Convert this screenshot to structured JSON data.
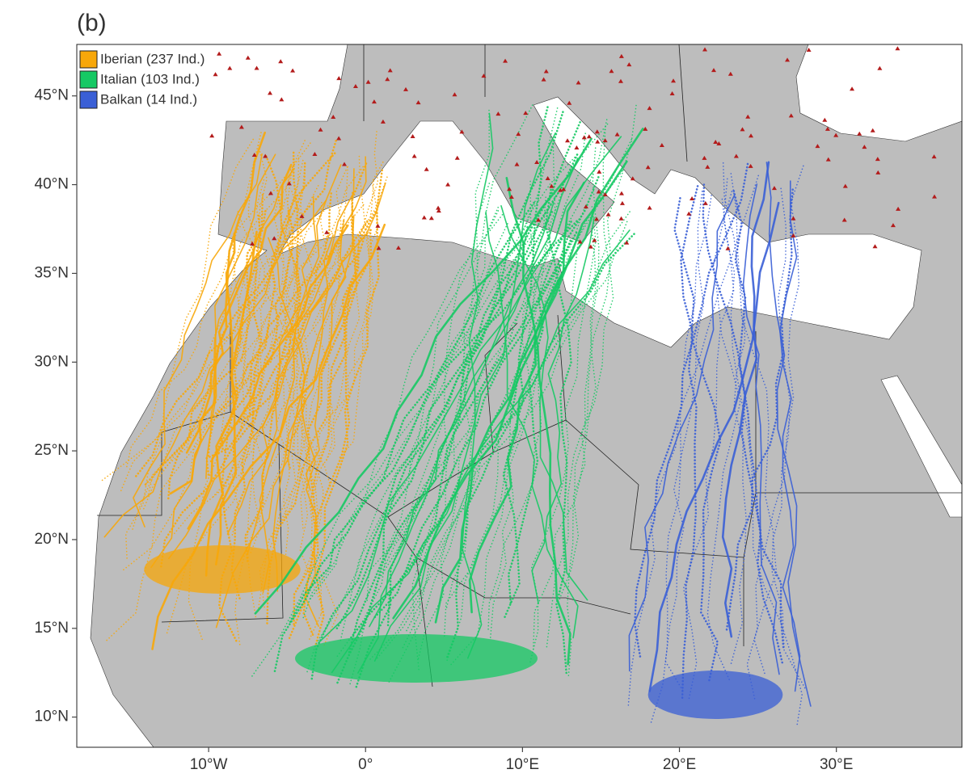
{
  "panel_label": "(b)",
  "legend": {
    "items": [
      {
        "label": "Iberian (237 Ind.)",
        "color": "#f7a70a"
      },
      {
        "label": "Italian (103 Ind.)",
        "color": "#16c964"
      },
      {
        "label": "Balkan (14 Ind.)",
        "color": "#3a5fd6"
      }
    ]
  },
  "axes": {
    "lon_lim": [
      -18.4,
      38.0
    ],
    "lat_lim": [
      8.3,
      47.9
    ],
    "lat_ticks": [
      {
        "value": 10,
        "label": "10°N"
      },
      {
        "value": 15,
        "label": "15°N"
      },
      {
        "value": 20,
        "label": "20°N"
      },
      {
        "value": 25,
        "label": "25°N"
      },
      {
        "value": 30,
        "label": "30°N"
      },
      {
        "value": 35,
        "label": "35°N"
      },
      {
        "value": 40,
        "label": "40°N"
      },
      {
        "value": 45,
        "label": "45°N"
      }
    ],
    "lon_ticks": [
      {
        "value": -10,
        "label": "10°W"
      },
      {
        "value": 0,
        "label": "0°"
      },
      {
        "value": 10,
        "label": "10°E"
      },
      {
        "value": 20,
        "label": "20°E"
      },
      {
        "value": 30,
        "label": "30°E"
      }
    ]
  }
}
